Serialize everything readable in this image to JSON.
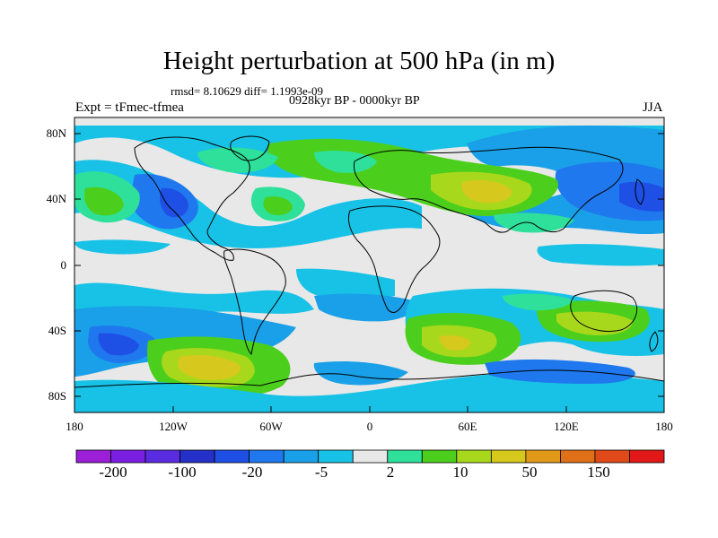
{
  "title": "Height perturbation at 500 hPa (in m)",
  "stats": "rmsd= 8.10629 diff= 1.1993e-09",
  "experiment": "Expt = tFmec-tfmea",
  "period": "0928kyr BP - 0000kyr BP",
  "season": "JJA",
  "lat_ticks": [
    "80N",
    "40N",
    "0",
    "40S",
    "80S"
  ],
  "lon_ticks": [
    "180",
    "120W",
    "60W",
    "0",
    "60E",
    "120E",
    "180"
  ],
  "colorbar": {
    "colors": [
      "#9a1fd6",
      "#7a1fe0",
      "#5a2ce0",
      "#2430c8",
      "#1f50e6",
      "#1f78ee",
      "#1aa0e8",
      "#18c2e6",
      "#e8e8e8",
      "#2ee09a",
      "#4ccf1c",
      "#a8d81c",
      "#d6c81c",
      "#e09a18",
      "#e07018",
      "#e04a18",
      "#e01818"
    ],
    "labels": [
      "-200",
      "-100",
      "-20",
      "-5",
      "2",
      "10",
      "50",
      "150"
    ]
  }
}
